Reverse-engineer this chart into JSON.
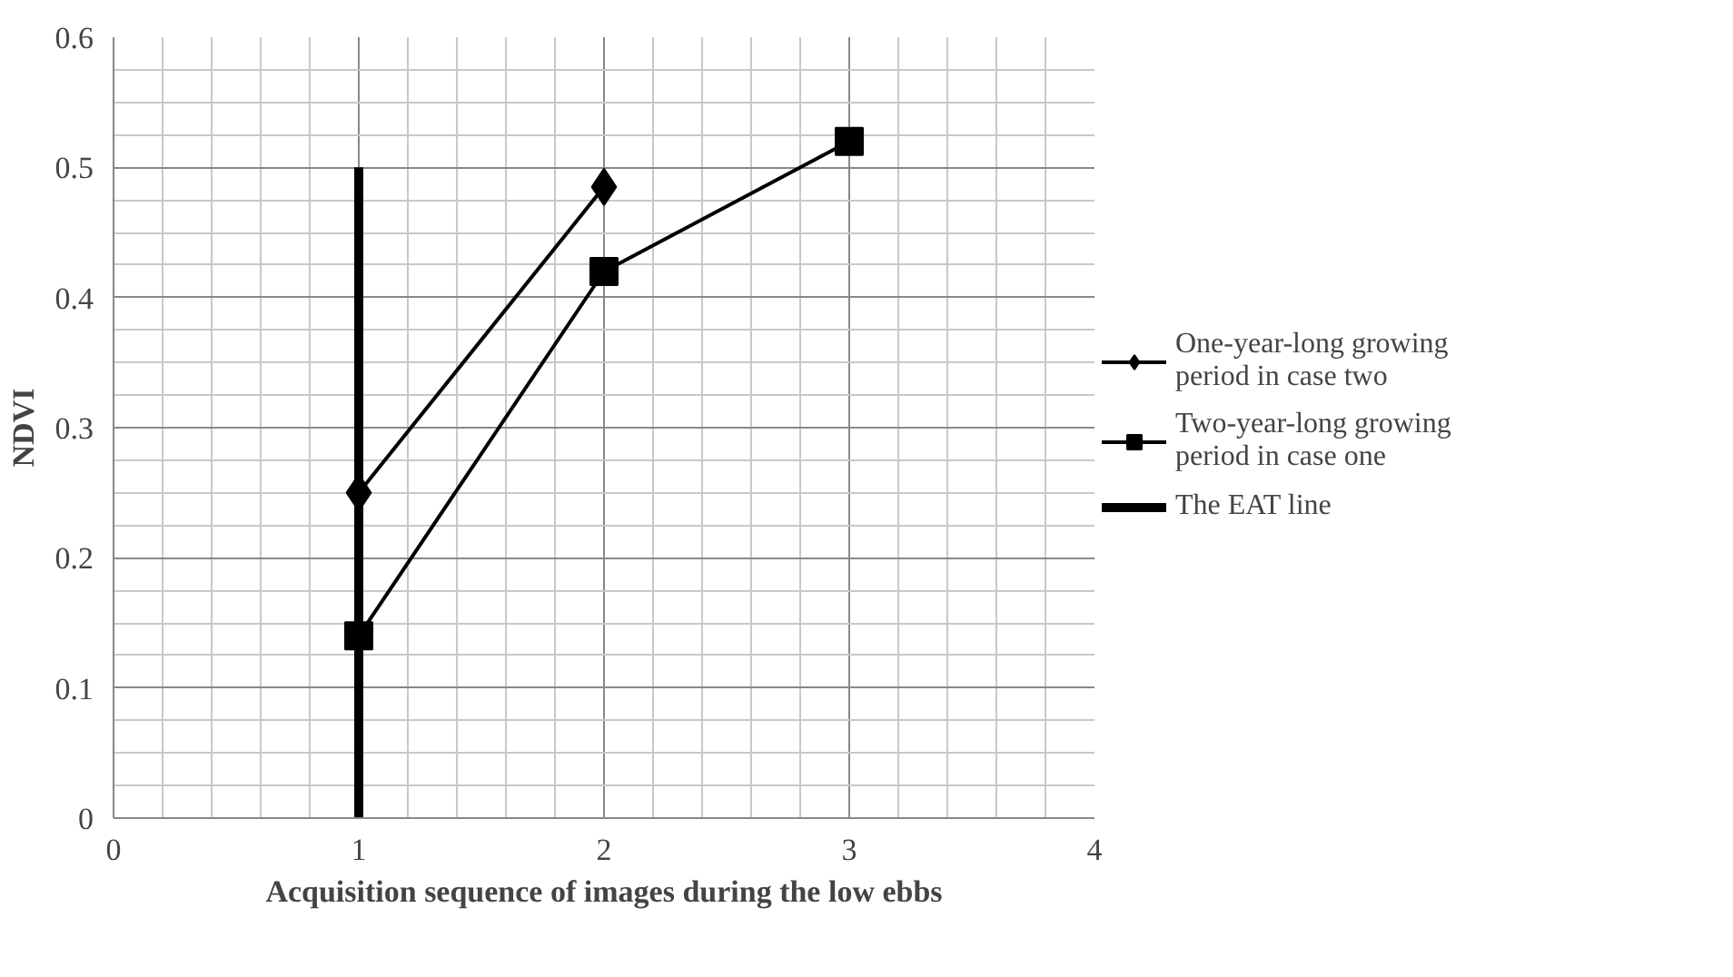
{
  "chart_data": {
    "type": "line",
    "xlabel": "Acquisition sequence of images during the low ebbs",
    "ylabel": "NDVI",
    "xlim": [
      0,
      4
    ],
    "xticks": [
      0,
      1,
      2,
      3,
      4
    ],
    "ylim": [
      0,
      0.6
    ],
    "yticks": [
      0,
      0.1,
      0.2,
      0.3,
      0.4,
      0.5,
      0.6
    ],
    "grid": true,
    "legend": "right",
    "series": [
      {
        "name": "One-year-long growing period in case two",
        "color": "#000000",
        "x": [
          1,
          2
        ],
        "values": [
          0.25,
          0.485
        ],
        "marker": "diamond"
      },
      {
        "name": "Two-year-long growing period in case one",
        "color": "#000000",
        "x": [
          1,
          2,
          3
        ],
        "values": [
          0.14,
          0.42,
          0.52
        ],
        "marker": "square"
      },
      {
        "name": "The EAT line",
        "color": "#000000",
        "x": [
          1,
          1
        ],
        "values": [
          0,
          0.5
        ],
        "marker": "none"
      }
    ]
  }
}
